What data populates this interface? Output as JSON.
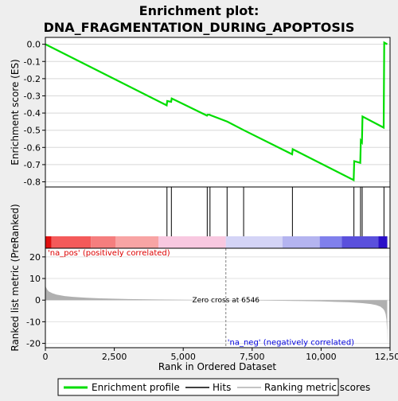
{
  "title_line1": "Enrichment plot:",
  "title_line2": "DNA_FRAGMENTATION_DURING_APOPTOSIS",
  "colors": {
    "enrichment": "#00dd00",
    "hits": "#000000",
    "metric_fill": "#b0b0b0",
    "background": "#eeeeee",
    "plot_bg": "#ffffff",
    "zero_cross": "#808080",
    "pos_label": "#dd0000",
    "neg_label": "#0000dd"
  },
  "legend": {
    "enrichment": "Enrichment profile",
    "hits": "Hits",
    "ranking": "Ranking metric scores"
  },
  "chart_data": {
    "type": "line",
    "panels": {
      "enrichment": {
        "ylabel": "Enrichment score (ES)",
        "xlim": [
          0,
          12500
        ],
        "ylim": [
          -0.83,
          0.04
        ],
        "yticks": [
          0.0,
          -0.1,
          -0.2,
          -0.3,
          -0.4,
          -0.5,
          -0.6,
          -0.7,
          -0.8
        ],
        "ytick_labels": [
          "0.0",
          "-0.1",
          "-0.2",
          "-0.3",
          "-0.4",
          "-0.5",
          "-0.6",
          "-0.7",
          "-0.8"
        ],
        "series": [
          {
            "x": [
              0,
              4400,
              4420,
              4560,
              4580,
              5860,
              5880,
              5960,
              5980,
              6600,
              7200,
              8950,
              8970,
              11180,
              11200,
              11420,
              11440,
              11480,
              11500,
              12270,
              12290,
              12400
            ],
            "y": [
              0.0,
              -0.355,
              -0.33,
              -0.335,
              -0.315,
              -0.415,
              -0.41,
              -0.41,
              -0.412,
              -0.45,
              -0.5,
              -0.64,
              -0.61,
              -0.79,
              -0.68,
              -0.69,
              -0.56,
              -0.57,
              -0.42,
              -0.485,
              0.01,
              0.0
            ]
          }
        ]
      },
      "hits": {
        "positions": [
          4410,
          4570,
          5870,
          5970,
          6590,
          7190,
          8960,
          11190,
          11430,
          11490,
          12280
        ]
      },
      "colorbar": {
        "segments": [
          {
            "x0": 0,
            "x1": 220,
            "color": "#e01010"
          },
          {
            "x0": 220,
            "x1": 1650,
            "color": "#f45a5a"
          },
          {
            "x0": 1650,
            "x1": 2550,
            "color": "#f57e7e"
          },
          {
            "x0": 2550,
            "x1": 4100,
            "color": "#f8a4a4"
          },
          {
            "x0": 4100,
            "x1": 6546,
            "color": "#f8c8e0"
          },
          {
            "x0": 6546,
            "x1": 8600,
            "color": "#d4d4f6"
          },
          {
            "x0": 8600,
            "x1": 9950,
            "color": "#b4b4f0"
          },
          {
            "x0": 9950,
            "x1": 10750,
            "color": "#8080ec"
          },
          {
            "x0": 10750,
            "x1": 12080,
            "color": "#5a50dc"
          },
          {
            "x0": 12080,
            "x1": 12400,
            "color": "#2a10c8"
          }
        ]
      },
      "metric": {
        "ylabel": "Ranked list metric (PreRanked)",
        "xlabel": "Rank in Ordered Dataset",
        "xlim": [
          0,
          12500
        ],
        "ylim": [
          -22,
          24
        ],
        "yticks": [
          20,
          10,
          0,
          -10,
          -20
        ],
        "ytick_labels": [
          "20",
          "10",
          "0",
          "-10",
          "-20"
        ],
        "xticks": [
          0,
          2500,
          5000,
          7500,
          10000,
          12500
        ],
        "xtick_labels": [
          "0",
          "2,500",
          "5,000",
          "7,500",
          "10,000",
          "12,500"
        ],
        "zero_cross": 6546,
        "zero_cross_label": "Zero cross at 6546",
        "pos_label": "'na_pos' (positively correlated)",
        "neg_label": "'na_neg' (negatively correlated)",
        "profile": {
          "x": [
            0,
            20,
            60,
            120,
            250,
            400,
            700,
            1000,
            1500,
            2000,
            3000,
            4000,
            5000,
            6546,
            8000,
            9000,
            10000,
            10500,
            11000,
            11500,
            11800,
            12000,
            12150,
            12250,
            12300,
            12340,
            12370,
            12390,
            12400
          ],
          "y": [
            7.5,
            6.0,
            5.0,
            4.0,
            3.2,
            2.6,
            1.9,
            1.5,
            1.1,
            0.8,
            0.5,
            0.3,
            0.15,
            0.0,
            -0.2,
            -0.35,
            -0.6,
            -0.8,
            -1.0,
            -1.4,
            -1.8,
            -2.3,
            -3.0,
            -4.0,
            -5.0,
            -6.5,
            -9.0,
            -14.0,
            -21.0
          ]
        }
      }
    }
  }
}
